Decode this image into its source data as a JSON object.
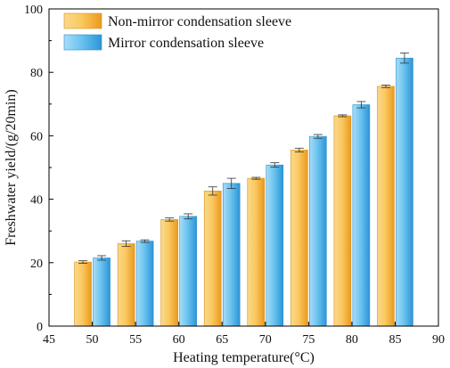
{
  "chart_data": {
    "type": "bar",
    "xlabel": "Heating temperature(°C)",
    "ylabel": "Freshwater yield/(g/20min)",
    "categories": [
      50,
      55,
      60,
      65,
      70,
      75,
      80,
      85
    ],
    "x_ticks": [
      45,
      50,
      55,
      60,
      65,
      70,
      75,
      80,
      85,
      90
    ],
    "xlim": [
      45,
      90
    ],
    "ylim": [
      0,
      100
    ],
    "y_ticks": [
      0,
      20,
      40,
      60,
      80,
      100
    ],
    "grid": false,
    "legend_position": "top-left",
    "series": [
      {
        "name": "Non-mirror condensation sleeve",
        "color": "#f5b13d",
        "values": [
          20.2,
          26.0,
          33.6,
          42.6,
          46.6,
          55.5,
          66.3,
          75.6
        ],
        "errors": [
          0.4,
          0.9,
          0.5,
          1.3,
          0.3,
          0.6,
          0.3,
          0.4
        ]
      },
      {
        "name": "Mirror condensation sleeve",
        "color": "#4fb3e8",
        "values": [
          21.5,
          26.8,
          34.6,
          45.0,
          50.8,
          59.8,
          69.8,
          84.5
        ],
        "errors": [
          0.7,
          0.4,
          0.8,
          1.6,
          0.7,
          0.6,
          1.0,
          1.6
        ]
      }
    ]
  }
}
